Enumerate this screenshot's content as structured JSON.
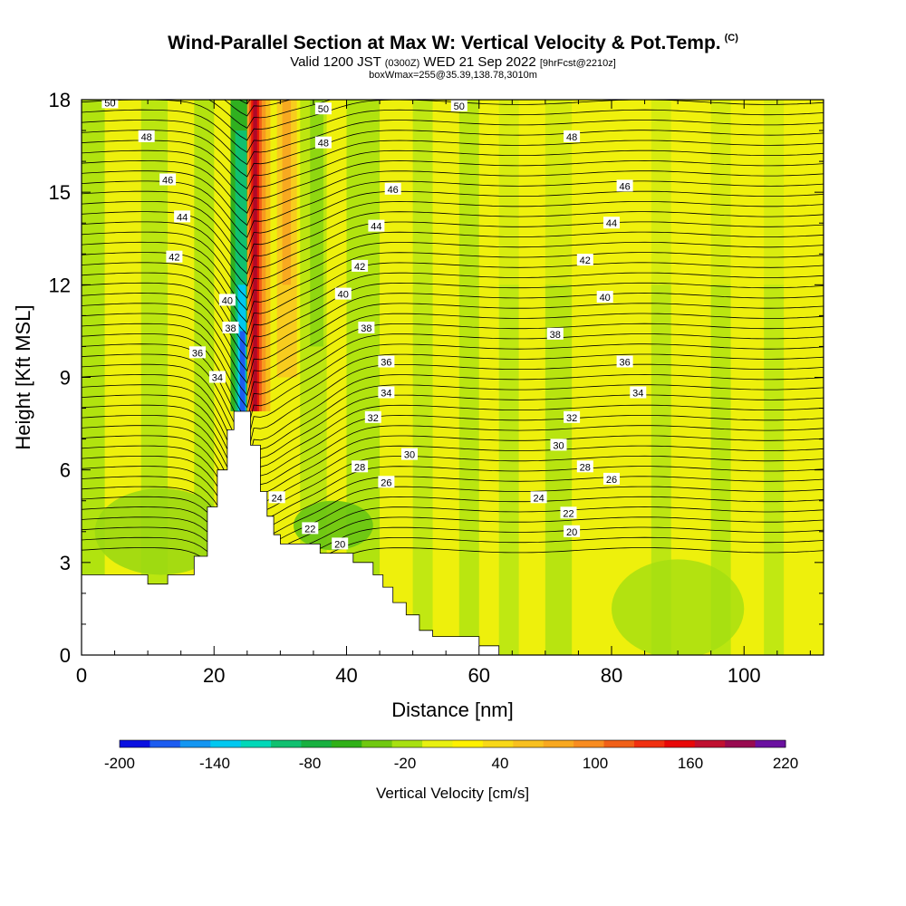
{
  "title": {
    "main": "Wind-Parallel Section at Max W: Vertical Velocity & Pot.Temp.",
    "copyright": "(C)",
    "valid_prefix": "Valid 1200 JST",
    "valid_utc": "(0300Z)",
    "valid_suffix": "WED 21 Sep 2022",
    "forecast": "[9hrFcst@2210z]",
    "box_info": "boxWmax=255@35.39,138.78,3010m"
  },
  "chart_data": {
    "type": "heatmap",
    "xlabel": "Distance [nm]",
    "ylabel": "Height [Kft MSL]",
    "xlim": [
      0,
      112
    ],
    "ylim": [
      0,
      18
    ],
    "x_ticks": [
      "0",
      "20",
      "40",
      "60",
      "80",
      "100"
    ],
    "y_ticks": [
      "0",
      "3",
      "6",
      "9",
      "12",
      "15",
      "18"
    ],
    "x_tick_values": [
      0,
      20,
      40,
      60,
      80,
      100
    ],
    "y_tick_values": [
      0,
      3,
      6,
      9,
      12,
      15,
      18
    ],
    "colorbar": {
      "label": "Vertical Velocity [cm/s]",
      "ticks": [
        "-200",
        "-140",
        "-80",
        "-20",
        "40",
        "100",
        "160",
        "220"
      ],
      "range": [
        -200,
        220
      ],
      "colors": [
        "#0a10e0",
        "#1c5cf0",
        "#1496f2",
        "#00c8f0",
        "#00d8b8",
        "#10c070",
        "#18b040",
        "#30b018",
        "#70c810",
        "#a8e010",
        "#e8f010",
        "#fff000",
        "#f8d818",
        "#f8c020",
        "#f8a820",
        "#f88c20",
        "#f06018",
        "#f03010",
        "#e80808",
        "#c01030",
        "#980a50",
        "#6a10a0"
      ]
    },
    "isentrope_labels": [
      {
        "text": "50",
        "x": 4.3,
        "y": 17.9
      },
      {
        "text": "48",
        "x": 9.8,
        "y": 16.8
      },
      {
        "text": "46",
        "x": 13,
        "y": 15.4
      },
      {
        "text": "44",
        "x": 15.2,
        "y": 14.2
      },
      {
        "text": "42",
        "x": 14,
        "y": 12.9
      },
      {
        "text": "40",
        "x": 22,
        "y": 11.5
      },
      {
        "text": "38",
        "x": 22.5,
        "y": 10.6
      },
      {
        "text": "36",
        "x": 17.5,
        "y": 9.8
      },
      {
        "text": "34",
        "x": 20.5,
        "y": 9.0
      },
      {
        "text": "50",
        "x": 36.5,
        "y": 17.7
      },
      {
        "text": "48",
        "x": 36.5,
        "y": 16.6
      },
      {
        "text": "46",
        "x": 47,
        "y": 15.1
      },
      {
        "text": "44",
        "x": 44.5,
        "y": 13.9
      },
      {
        "text": "42",
        "x": 42,
        "y": 12.6
      },
      {
        "text": "40",
        "x": 39.5,
        "y": 11.7
      },
      {
        "text": "38",
        "x": 43,
        "y": 10.6
      },
      {
        "text": "36",
        "x": 46,
        "y": 9.5
      },
      {
        "text": "34",
        "x": 46,
        "y": 8.5
      },
      {
        "text": "32",
        "x": 44,
        "y": 7.7
      },
      {
        "text": "30",
        "x": 49.5,
        "y": 6.5
      },
      {
        "text": "28",
        "x": 42,
        "y": 6.1
      },
      {
        "text": "26",
        "x": 46,
        "y": 5.6
      },
      {
        "text": "24",
        "x": 29.5,
        "y": 5.1
      },
      {
        "text": "22",
        "x": 34.5,
        "y": 4.1
      },
      {
        "text": "20",
        "x": 39,
        "y": 3.6
      },
      {
        "text": "50",
        "x": 57,
        "y": 17.8
      },
      {
        "text": "48",
        "x": 74,
        "y": 16.8
      },
      {
        "text": "46",
        "x": 82,
        "y": 15.2
      },
      {
        "text": "44",
        "x": 80,
        "y": 14.0
      },
      {
        "text": "42",
        "x": 76,
        "y": 12.8
      },
      {
        "text": "40",
        "x": 79,
        "y": 11.6
      },
      {
        "text": "38",
        "x": 71.5,
        "y": 10.4
      },
      {
        "text": "36",
        "x": 82,
        "y": 9.5
      },
      {
        "text": "34",
        "x": 84,
        "y": 8.5
      },
      {
        "text": "32",
        "x": 74,
        "y": 7.7
      },
      {
        "text": "30",
        "x": 72,
        "y": 6.8
      },
      {
        "text": "28",
        "x": 76,
        "y": 6.1
      },
      {
        "text": "26",
        "x": 80,
        "y": 5.7
      },
      {
        "text": "24",
        "x": 69,
        "y": 5.1
      },
      {
        "text": "22",
        "x": 73.5,
        "y": 4.6
      },
      {
        "text": "20",
        "x": 74,
        "y": 4.0
      }
    ],
    "terrain_profile_kft": [
      [
        0,
        2.6
      ],
      [
        10,
        2.6
      ],
      [
        10,
        2.3
      ],
      [
        13,
        2.3
      ],
      [
        13,
        2.6
      ],
      [
        17,
        2.6
      ],
      [
        17,
        3.2
      ],
      [
        19,
        3.2
      ],
      [
        19,
        4.8
      ],
      [
        20.5,
        4.8
      ],
      [
        20.5,
        6.0
      ],
      [
        22,
        6.0
      ],
      [
        22,
        7.3
      ],
      [
        23,
        7.3
      ],
      [
        23,
        7.9
      ],
      [
        25.5,
        7.9
      ],
      [
        25.5,
        6.8
      ],
      [
        27,
        6.8
      ],
      [
        27,
        5.3
      ],
      [
        28,
        5.3
      ],
      [
        28,
        4.5
      ],
      [
        29,
        4.5
      ],
      [
        29,
        3.9
      ],
      [
        30,
        3.9
      ],
      [
        30,
        3.6
      ],
      [
        36,
        3.6
      ],
      [
        36,
        3.3
      ],
      [
        41,
        3.3
      ],
      [
        41,
        3.0
      ],
      [
        44,
        3.0
      ],
      [
        44,
        2.6
      ],
      [
        45.5,
        2.6
      ],
      [
        45.5,
        2.2
      ],
      [
        47,
        2.2
      ],
      [
        47,
        1.7
      ],
      [
        49,
        1.7
      ],
      [
        49,
        1.3
      ],
      [
        51,
        1.3
      ],
      [
        51,
        0.8
      ],
      [
        53,
        0.8
      ],
      [
        53,
        0.6
      ],
      [
        60,
        0.6
      ],
      [
        60,
        0.3
      ],
      [
        63,
        0.3
      ],
      [
        63,
        0
      ],
      [
        112,
        0
      ]
    ],
    "grid": false
  }
}
